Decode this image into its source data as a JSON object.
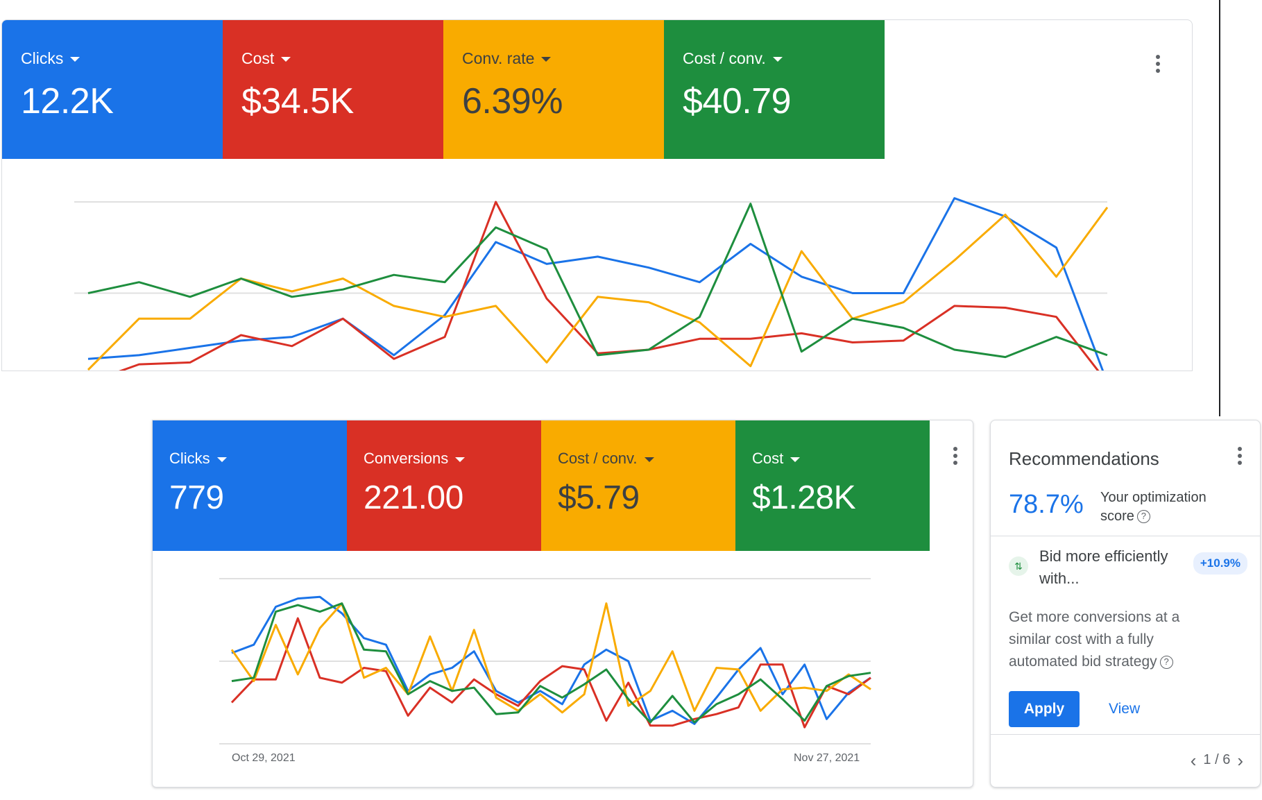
{
  "panel1": {
    "tiles": [
      {
        "label": "Clicks",
        "value": "12.2K",
        "color": "#1a73e8"
      },
      {
        "label": "Cost",
        "value": "$34.5K",
        "color": "#d93025"
      },
      {
        "label": "Conv. rate",
        "value": "6.39%",
        "color": "#f9ab00"
      },
      {
        "label": "Cost / conv.",
        "value": "$40.79",
        "color": "#1e8e3e"
      }
    ],
    "more_icon": "more-vert-icon"
  },
  "panel2": {
    "tiles": [
      {
        "label": "Clicks",
        "value": "779",
        "color": "#1a73e8"
      },
      {
        "label": "Conversions",
        "value": "221.00",
        "color": "#d93025"
      },
      {
        "label": "Cost / conv.",
        "value": "$5.79",
        "color": "#f9ab00"
      },
      {
        "label": "Cost",
        "value": "$1.28K",
        "color": "#1e8e3e"
      }
    ],
    "date_start": "Oct 29, 2021",
    "date_end": "Nov 27, 2021",
    "more_icon": "more-vert-icon"
  },
  "recommendations": {
    "title": "Recommendations",
    "score": "78.7%",
    "score_label": "Your optimization score",
    "help_icon": "?",
    "bid_title": "Bid more efficiently with...",
    "bid_badge": "+10.9%",
    "bid_icon": "bid-strategy-icon",
    "description": "Get more conversions at a similar cost with a fully automated bid strategy",
    "apply_label": "Apply",
    "view_label": "View",
    "pager": "1 / 6",
    "prev_icon": "‹",
    "next_icon": "›"
  },
  "chart_data": [
    {
      "type": "line",
      "title": "",
      "x_count": 21,
      "y_levels": 3,
      "series": [
        {
          "color": "#1a73e8",
          "values": [
            0.14,
            0.16,
            0.2,
            0.24,
            0.26,
            0.36,
            0.16,
            0.38,
            0.78,
            0.66,
            0.7,
            0.64,
            0.56,
            0.77,
            0.59,
            0.5,
            0.5,
            1.02,
            0.92,
            0.75,
            0.01
          ]
        },
        {
          "color": "#d93025",
          "values": [
            0.01,
            0.11,
            0.12,
            0.27,
            0.21,
            0.36,
            0.14,
            0.26,
            1.0,
            0.47,
            0.17,
            0.19,
            0.25,
            0.25,
            0.28,
            0.23,
            0.24,
            0.43,
            0.42,
            0.37,
            0.01
          ]
        },
        {
          "color": "#f9ab00",
          "values": [
            0.08,
            0.36,
            0.36,
            0.58,
            0.51,
            0.58,
            0.43,
            0.37,
            0.43,
            0.12,
            0.48,
            0.45,
            0.34,
            0.1,
            0.73,
            0.36,
            0.45,
            0.68,
            0.93,
            0.59,
            0.97
          ]
        },
        {
          "color": "#1e8e3e",
          "values": [
            0.5,
            0.56,
            0.48,
            0.58,
            0.48,
            0.52,
            0.6,
            0.56,
            0.86,
            0.74,
            0.16,
            0.19,
            0.37,
            0.99,
            0.18,
            0.36,
            0.31,
            0.19,
            0.15,
            0.26,
            0.16
          ]
        }
      ]
    },
    {
      "type": "line",
      "title": "",
      "x_count": 30,
      "x_labels": [
        "Oct 29, 2021",
        "Nov 27, 2021"
      ],
      "y_levels": 3,
      "series": [
        {
          "color": "#1a73e8",
          "values": [
            0.55,
            0.6,
            0.83,
            0.88,
            0.89,
            0.79,
            0.64,
            0.6,
            0.32,
            0.42,
            0.46,
            0.56,
            0.32,
            0.25,
            0.32,
            0.24,
            0.48,
            0.57,
            0.5,
            0.14,
            0.2,
            0.12,
            0.28,
            0.45,
            0.58,
            0.3,
            0.48,
            0.15,
            0.31,
            0.4
          ]
        },
        {
          "color": "#d93025",
          "values": [
            0.25,
            0.39,
            0.39,
            0.76,
            0.4,
            0.37,
            0.46,
            0.44,
            0.17,
            0.34,
            0.25,
            0.39,
            0.3,
            0.23,
            0.38,
            0.47,
            0.45,
            0.14,
            0.37,
            0.11,
            0.11,
            0.15,
            0.18,
            0.22,
            0.48,
            0.48,
            0.1,
            0.35,
            0.3,
            0.4
          ]
        },
        {
          "color": "#f9ab00",
          "values": [
            0.57,
            0.38,
            0.72,
            0.42,
            0.7,
            0.85,
            0.4,
            0.46,
            0.3,
            0.65,
            0.32,
            0.69,
            0.28,
            0.2,
            0.3,
            0.19,
            0.3,
            0.85,
            0.23,
            0.32,
            0.56,
            0.2,
            0.46,
            0.45,
            0.2,
            0.33,
            0.34,
            0.32,
            0.42,
            0.33
          ]
        },
        {
          "color": "#1e8e3e",
          "values": [
            0.38,
            0.4,
            0.8,
            0.84,
            0.8,
            0.85,
            0.57,
            0.56,
            0.3,
            0.38,
            0.32,
            0.34,
            0.18,
            0.19,
            0.35,
            0.28,
            0.36,
            0.45,
            0.27,
            0.13,
            0.29,
            0.13,
            0.24,
            0.3,
            0.39,
            0.27,
            0.14,
            0.35,
            0.41,
            0.43
          ]
        }
      ]
    }
  ]
}
